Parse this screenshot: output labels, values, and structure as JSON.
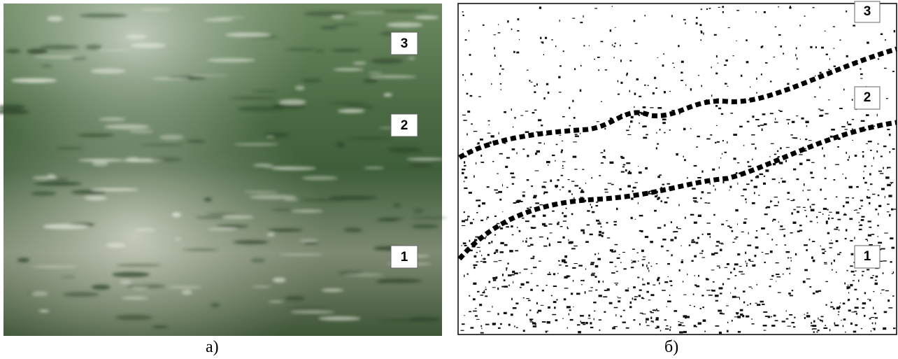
{
  "panels": [
    {
      "caption": "а)",
      "labels": [
        "3",
        "2",
        "1"
      ]
    },
    {
      "caption": "б)",
      "labels": [
        "3",
        "2",
        "1"
      ]
    }
  ]
}
